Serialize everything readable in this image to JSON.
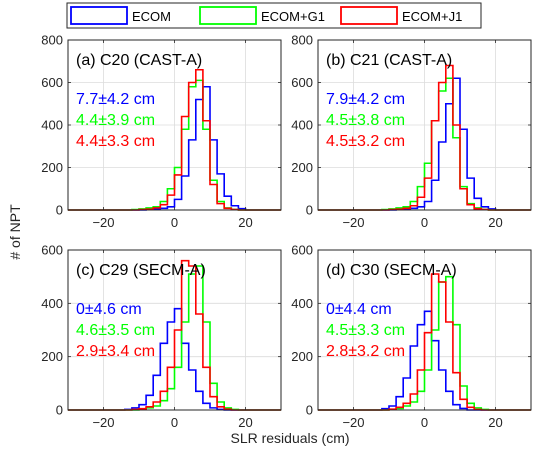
{
  "legend": {
    "entries": [
      {
        "label": "ECOM",
        "color": "#0000ff"
      },
      {
        "label": "ECOM+G1",
        "color": "#00ff00"
      },
      {
        "label": "ECOM+J1",
        "color": "#ff0000"
      }
    ]
  },
  "ylabel": "# of NPT",
  "xlabel": "SLR residuals (cm)",
  "chart_data": [
    {
      "type": "histogram",
      "title": "(a) C20 (CAST-A)",
      "xlim": [
        -30,
        30
      ],
      "ylim": [
        0,
        800
      ],
      "xticks": [
        -20,
        0,
        20
      ],
      "yticks": [
        0,
        200,
        400,
        600,
        800
      ],
      "grid": true,
      "bin_edges": [
        -30,
        -28,
        -26,
        -24,
        -22,
        -20,
        -18,
        -16,
        -14,
        -12,
        -10,
        -8,
        -6,
        -4,
        -2,
        0,
        2,
        4,
        6,
        8,
        10,
        12,
        14,
        16,
        18,
        20,
        22,
        24,
        26,
        28,
        30
      ],
      "stats": [
        {
          "text": "7.7±4.2 cm",
          "color": "#0000ff"
        },
        {
          "text": "4.4±3.9 cm",
          "color": "#00ff00"
        },
        {
          "text": "4.4±3.3 cm",
          "color": "#ff0000"
        }
      ],
      "series": [
        {
          "name": "ECOM",
          "color": "#0000ff",
          "values": [
            0,
            0,
            0,
            0,
            0,
            0,
            0,
            0,
            0,
            0,
            0,
            3,
            5,
            8,
            15,
            50,
            160,
            330,
            520,
            580,
            330,
            170,
            65,
            20,
            6,
            0,
            0,
            0,
            0,
            0
          ]
        },
        {
          "name": "ECOM+G1",
          "color": "#00ff00",
          "values": [
            0,
            0,
            0,
            0,
            0,
            0,
            0,
            0,
            0,
            2,
            5,
            10,
            15,
            40,
            100,
            200,
            380,
            580,
            610,
            380,
            140,
            40,
            10,
            3,
            0,
            0,
            0,
            0,
            0,
            0
          ]
        },
        {
          "name": "ECOM+J1",
          "color": "#ff0000",
          "values": [
            0,
            0,
            0,
            0,
            0,
            0,
            0,
            0,
            0,
            0,
            2,
            4,
            10,
            25,
            70,
            165,
            440,
            600,
            660,
            420,
            120,
            30,
            8,
            2,
            0,
            0,
            0,
            0,
            0,
            0
          ]
        }
      ]
    },
    {
      "type": "histogram",
      "title": "(b) C21 (CAST-A)",
      "xlim": [
        -30,
        30
      ],
      "ylim": [
        0,
        800
      ],
      "xticks": [
        -20,
        0,
        20
      ],
      "yticks": [
        0,
        200,
        400,
        600,
        800
      ],
      "grid": true,
      "bin_edges": [
        -30,
        -28,
        -26,
        -24,
        -22,
        -20,
        -18,
        -16,
        -14,
        -12,
        -10,
        -8,
        -6,
        -4,
        -2,
        0,
        2,
        4,
        6,
        8,
        10,
        12,
        14,
        16,
        18,
        20,
        22,
        24,
        26,
        28,
        30
      ],
      "stats": [
        {
          "text": "7.9±4.2 cm",
          "color": "#0000ff"
        },
        {
          "text": "4.5±3.8 cm",
          "color": "#00ff00"
        },
        {
          "text": "4.5±3.2 cm",
          "color": "#ff0000"
        }
      ],
      "series": [
        {
          "name": "ECOM",
          "color": "#0000ff",
          "values": [
            0,
            0,
            0,
            0,
            0,
            0,
            0,
            0,
            0,
            0,
            0,
            2,
            4,
            8,
            15,
            40,
            140,
            320,
            500,
            620,
            380,
            150,
            55,
            15,
            5,
            0,
            0,
            0,
            0,
            0
          ]
        },
        {
          "name": "ECOM+G1",
          "color": "#00ff00",
          "values": [
            0,
            0,
            0,
            0,
            0,
            0,
            0,
            0,
            0,
            2,
            5,
            10,
            15,
            40,
            110,
            220,
            420,
            560,
            620,
            340,
            110,
            30,
            10,
            3,
            0,
            0,
            0,
            0,
            0,
            0
          ]
        },
        {
          "name": "ECOM+J1",
          "color": "#ff0000",
          "values": [
            0,
            0,
            0,
            0,
            0,
            0,
            0,
            0,
            0,
            0,
            2,
            4,
            8,
            20,
            60,
            150,
            420,
            600,
            680,
            400,
            100,
            25,
            6,
            2,
            0,
            0,
            0,
            0,
            0,
            0
          ]
        }
      ]
    },
    {
      "type": "histogram",
      "title": "(c) C29 (SECM-A)",
      "xlim": [
        -30,
        30
      ],
      "ylim": [
        0,
        600
      ],
      "xticks": [
        -20,
        0,
        20
      ],
      "yticks": [
        0,
        200,
        400,
        600
      ],
      "grid": true,
      "bin_edges": [
        -30,
        -28,
        -26,
        -24,
        -22,
        -20,
        -18,
        -16,
        -14,
        -12,
        -10,
        -8,
        -6,
        -4,
        -2,
        0,
        2,
        4,
        6,
        8,
        10,
        12,
        14,
        16,
        18,
        20,
        22,
        24,
        26,
        28,
        30
      ],
      "stats": [
        {
          "text": "0±4.6 cm",
          "color": "#0000ff"
        },
        {
          "text": "4.6±3.5 cm",
          "color": "#00ff00"
        },
        {
          "text": "2.9±3.4 cm",
          "color": "#ff0000"
        }
      ],
      "series": [
        {
          "name": "ECOM",
          "color": "#0000ff",
          "values": [
            0,
            0,
            0,
            0,
            0,
            0,
            0,
            0,
            2,
            8,
            20,
            55,
            130,
            250,
            330,
            380,
            250,
            150,
            70,
            25,
            8,
            2,
            0,
            0,
            0,
            0,
            0,
            0,
            0,
            0
          ]
        },
        {
          "name": "ECOM+G1",
          "color": "#00ff00",
          "values": [
            0,
            0,
            0,
            0,
            0,
            0,
            0,
            0,
            0,
            0,
            3,
            8,
            15,
            35,
            80,
            160,
            330,
            510,
            540,
            330,
            100,
            30,
            8,
            2,
            0,
            0,
            0,
            0,
            0,
            0
          ]
        },
        {
          "name": "ECOM+J1",
          "color": "#ff0000",
          "values": [
            0,
            0,
            0,
            0,
            0,
            0,
            0,
            0,
            0,
            2,
            5,
            12,
            30,
            70,
            160,
            300,
            560,
            540,
            360,
            160,
            50,
            12,
            3,
            0,
            0,
            0,
            0,
            0,
            0,
            0
          ]
        }
      ]
    },
    {
      "type": "histogram",
      "title": "(d) C30 (SECM-A)",
      "xlim": [
        -30,
        30
      ],
      "ylim": [
        0,
        600
      ],
      "xticks": [
        -20,
        0,
        20
      ],
      "yticks": [
        0,
        200,
        400,
        600
      ],
      "grid": true,
      "bin_edges": [
        -30,
        -28,
        -26,
        -24,
        -22,
        -20,
        -18,
        -16,
        -14,
        -12,
        -10,
        -8,
        -6,
        -4,
        -2,
        0,
        2,
        4,
        6,
        8,
        10,
        12,
        14,
        16,
        18,
        20,
        22,
        24,
        26,
        28,
        30
      ],
      "stats": [
        {
          "text": "0±4.4 cm",
          "color": "#0000ff"
        },
        {
          "text": "4.5±3.3 cm",
          "color": "#00ff00"
        },
        {
          "text": "2.8±3.2 cm",
          "color": "#ff0000"
        }
      ],
      "series": [
        {
          "name": "ECOM",
          "color": "#0000ff",
          "values": [
            0,
            0,
            0,
            0,
            0,
            0,
            0,
            0,
            0,
            5,
            15,
            50,
            120,
            240,
            320,
            370,
            260,
            150,
            70,
            20,
            6,
            0,
            0,
            0,
            0,
            0,
            0,
            0,
            0,
            0
          ]
        },
        {
          "name": "ECOM+G1",
          "color": "#00ff00",
          "values": [
            0,
            0,
            0,
            0,
            0,
            0,
            0,
            0,
            0,
            0,
            2,
            6,
            15,
            30,
            70,
            150,
            300,
            480,
            500,
            320,
            90,
            25,
            8,
            2,
            0,
            0,
            0,
            0,
            0,
            0
          ]
        },
        {
          "name": "ECOM+J1",
          "color": "#ff0000",
          "values": [
            0,
            0,
            0,
            0,
            0,
            0,
            0,
            0,
            0,
            0,
            3,
            10,
            25,
            60,
            150,
            290,
            510,
            480,
            330,
            140,
            40,
            10,
            2,
            0,
            0,
            0,
            0,
            0,
            0,
            0
          ]
        }
      ]
    }
  ]
}
